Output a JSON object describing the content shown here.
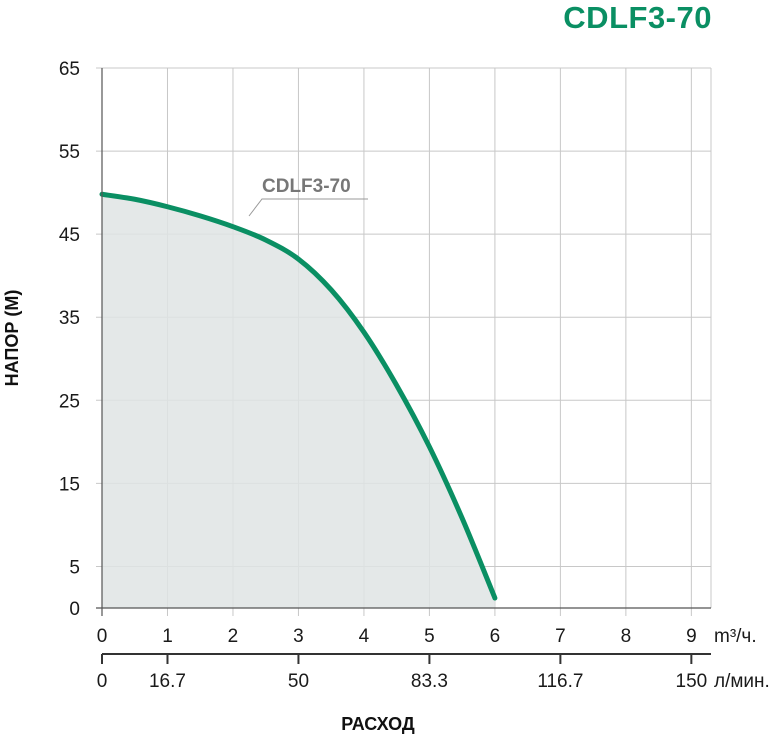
{
  "title": "CDLF3-70",
  "chart_data": {
    "type": "area",
    "series": [
      {
        "name": "CDLF3-70",
        "x": [
          0,
          0.5,
          1,
          1.5,
          2,
          2.5,
          3,
          3.5,
          4,
          4.5,
          5,
          5.5,
          6
        ],
        "y": [
          49.8,
          49.2,
          48.3,
          47.2,
          45.9,
          44.3,
          42.0,
          38.3,
          33.2,
          26.8,
          19.4,
          10.8,
          1.2
        ]
      }
    ],
    "xlabel": "РАСХОД",
    "ylabel": "НАПОР (М)",
    "xlim": [
      0,
      9.3
    ],
    "ylim": [
      0,
      65
    ],
    "y_ticks": [
      "0",
      "5",
      "15",
      "25",
      "35",
      "45",
      "55",
      "65"
    ],
    "x_ticks_primary": [
      "0",
      "1",
      "2",
      "3",
      "4",
      "5",
      "6",
      "7",
      "8",
      "9"
    ],
    "x_unit_primary": "m³/ч.",
    "x_ticks_secondary": [
      {
        "pos": 0,
        "label": "0"
      },
      {
        "pos": 1,
        "label": "16.7"
      },
      {
        "pos": 3,
        "label": "50"
      },
      {
        "pos": 5,
        "label": "83.3"
      },
      {
        "pos": 7,
        "label": "116.7"
      },
      {
        "pos": 9,
        "label": "150"
      }
    ],
    "x_unit_secondary": "л/мин.",
    "grid": true,
    "colors": {
      "curve": "#0a8f63",
      "fill": "#dfe4e4",
      "grid": "#c8c8c8",
      "title": "#0a8f63",
      "label": "#777777"
    }
  }
}
